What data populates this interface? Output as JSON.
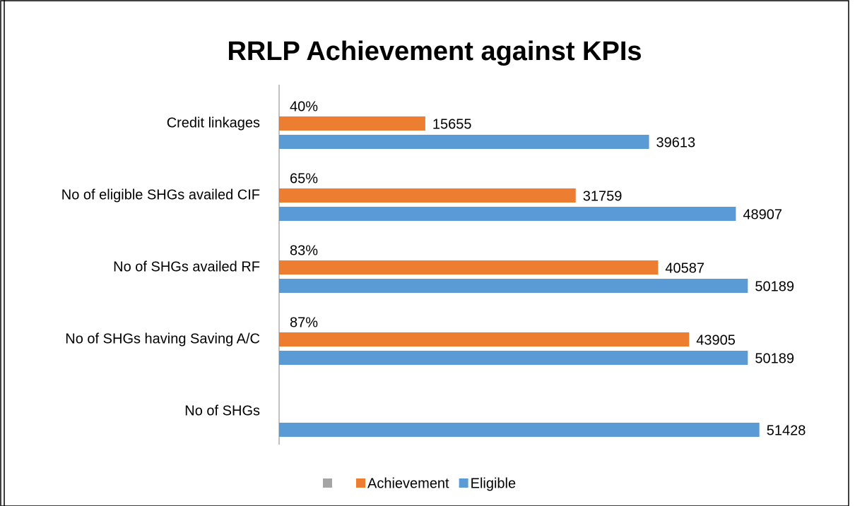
{
  "chart_data": {
    "type": "bar",
    "orientation": "horizontal",
    "title": "RRLP Achievement against KPIs",
    "categories": [
      "Credit linkages",
      "No of eligible SHGs availed CIF",
      "No of SHGs availed RF",
      "No of SHGs having Saving A/C",
      "No of SHGs"
    ],
    "series": [
      {
        "color": "#a5a5a5",
        "values": [
          40,
          65,
          83,
          87,
          null
        ],
        "value_labels": [
          "40%",
          "65%",
          "83%",
          "87%",
          null
        ]
      },
      {
        "name": "Achievement",
        "color": "#ed7d31",
        "values": [
          15655,
          31759,
          40587,
          43905,
          null
        ]
      },
      {
        "name": "Eligible",
        "color": "#5b9bd5",
        "values": [
          39613,
          48907,
          50189,
          50189,
          51428
        ]
      }
    ],
    "xlim": [
      0,
      60000
    ],
    "legend": "bottom"
  }
}
